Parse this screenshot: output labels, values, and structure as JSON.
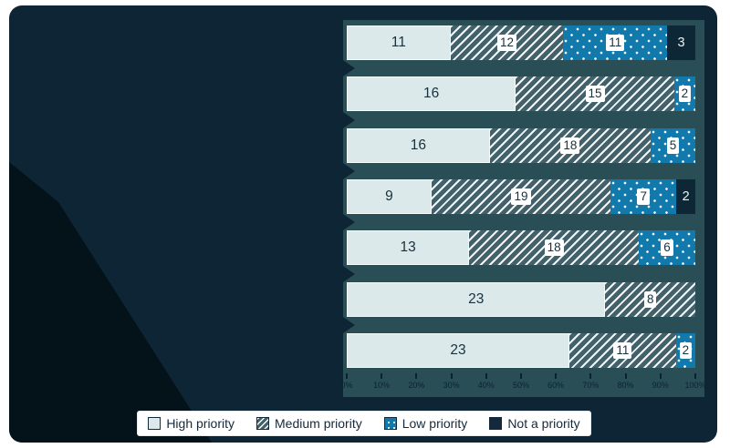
{
  "page": {
    "background": "#ffffff"
  },
  "panel": {
    "background": "#0D2534",
    "decorative_shape_color": "#04121A"
  },
  "chart_data": {
    "type": "bar",
    "variant": "horizontal-stacked-normalized",
    "title": "",
    "categories": [
      "",
      "",
      "",
      "",
      "",
      "",
      ""
    ],
    "series": [
      {
        "name": "High priority",
        "style": "solid-light",
        "color": "#DCE9EA",
        "values": [
          11,
          16,
          16,
          9,
          13,
          23,
          23
        ]
      },
      {
        "name": "Medium priority",
        "style": "hatched",
        "color": "#43616B",
        "values": [
          12,
          15,
          18,
          19,
          18,
          8,
          11
        ]
      },
      {
        "name": "Low priority",
        "style": "dotted",
        "color": "#1279AC",
        "values": [
          11,
          2,
          5,
          7,
          6,
          0,
          2
        ]
      },
      {
        "name": "Not a priority",
        "style": "solid-dark",
        "color": "#0E2737",
        "values": [
          3,
          0,
          0,
          2,
          0,
          0,
          0
        ]
      }
    ],
    "x_ticks": [
      "0%",
      "10%",
      "20%",
      "30%",
      "40%",
      "50%",
      "60%",
      "70%",
      "80%",
      "90%",
      "100%"
    ],
    "xlim": [
      0,
      100
    ],
    "grid": false,
    "legend_position": "bottom"
  },
  "legend": {
    "items": [
      {
        "label": "High priority"
      },
      {
        "label": "Medium priority"
      },
      {
        "label": "Low priority"
      },
      {
        "label": "Not a priority"
      }
    ]
  }
}
